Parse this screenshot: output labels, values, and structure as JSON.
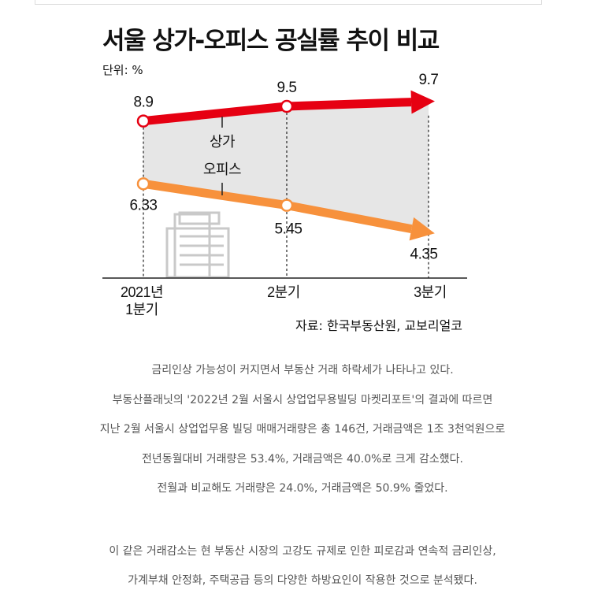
{
  "chart_data": {
    "type": "line",
    "title": "서울 상가-오피스 공실률 추이 비교",
    "unit_label": "단위: %",
    "categories": [
      "2021년\n1분기",
      "2분기",
      "3분기"
    ],
    "series": [
      {
        "name": "상가",
        "values": [
          8.9,
          9.5,
          9.7
        ],
        "labels": [
          "8.9",
          "9.5",
          "9.7"
        ],
        "color": "#e60012"
      },
      {
        "name": "오피스",
        "values": [
          6.33,
          5.45,
          4.35
        ],
        "labels": [
          "6.33",
          "5.45",
          "4.35"
        ],
        "color": "#f7913c"
      }
    ],
    "ylim": [
      3.6,
      10.5
    ],
    "grid": false,
    "fill_between_color": "#e6e6e6",
    "source": "자료: 한국부동산원, 교보리얼코"
  },
  "article": {
    "lines": [
      "금리인상 가능성이 커지면서 부동산 거래 하락세가 나타나고 있다.",
      "부동산플래닛의 '2022년 2월 서울시 상업업무용빌딩 마켓리포트'의 결과에 따르면",
      "지난 2월 서울시 상업업무용 빌딩 매매거래량은 총 146건, 거래금액은 1조 3천억원으로",
      "전년동월대비 거래량은 53.4%, 거래금액은 40.0%로 크게 감소했다.",
      "전월과 비교해도 거래량은 24.0%, 거래금액은 50.9% 줄었다."
    ],
    "lines2": [
      "이 같은 거래감소는 현 부동산 시장의 고강도 규제로 인한 피로감과 연속적 금리인상,",
      "가계부채 안정화, 주택공급 등의 다양한 하방요인이 작용한 것으로 분석됐다."
    ]
  }
}
